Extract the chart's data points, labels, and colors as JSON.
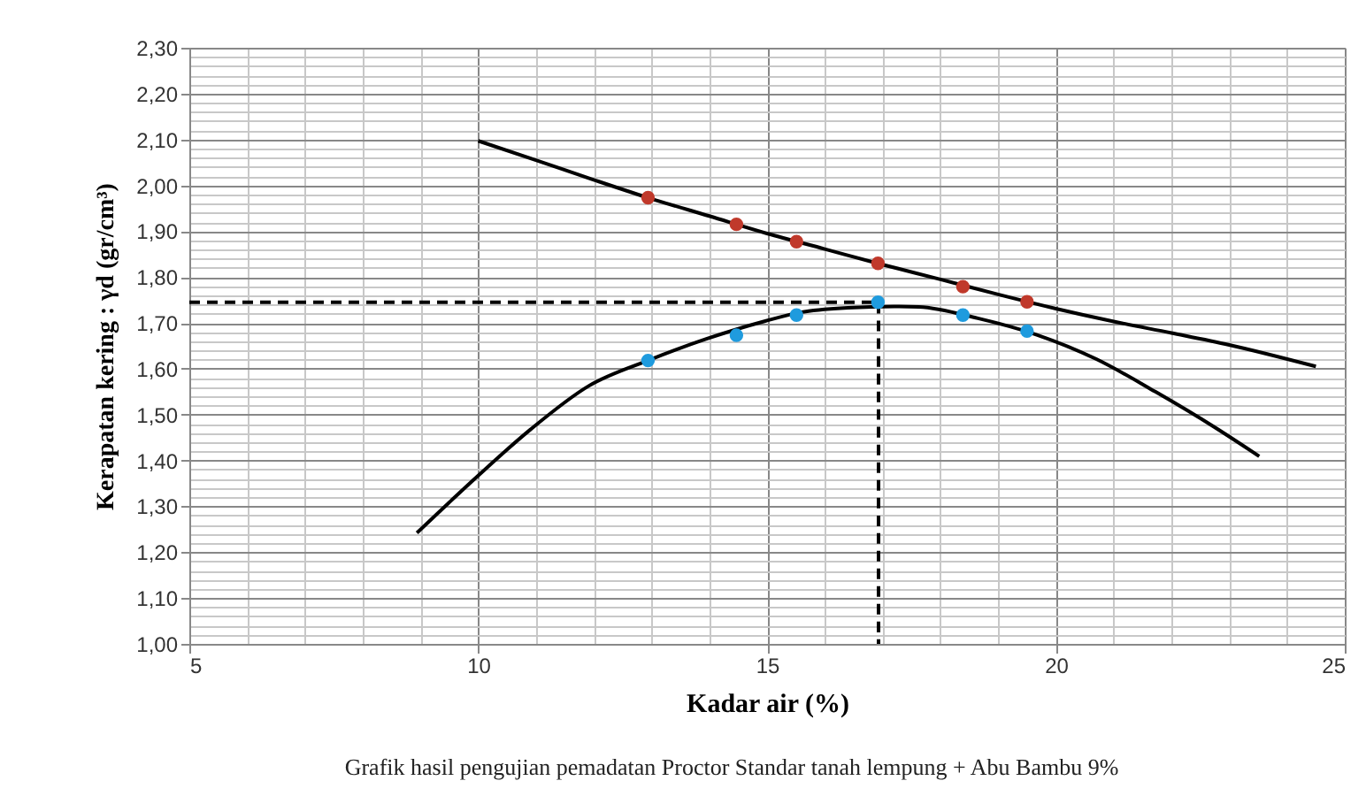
{
  "chart_data": {
    "type": "scatter",
    "xlabel": "Kadar air (%)",
    "ylabel": "Kerapatan kering : γd (gr/cm³)",
    "annotations": [
      "Grafik hasil pengujian pemadatan Proctor Standar tanah lempung + Abu Bambu 9%"
    ],
    "xlim": [
      5,
      25
    ],
    "xticks": [
      5,
      10,
      15,
      20,
      25
    ],
    "ylim": [
      1.0,
      2.3
    ],
    "yticks": [
      {
        "value": 1.0,
        "label": "1,00"
      },
      {
        "value": 1.1,
        "label": "1,10"
      },
      {
        "value": 1.2,
        "label": "1,20"
      },
      {
        "value": 1.3,
        "label": "1,30"
      },
      {
        "value": 1.4,
        "label": "1,40"
      },
      {
        "value": 1.5,
        "label": "1,50"
      },
      {
        "value": 1.6,
        "label": "1,60"
      },
      {
        "value": 1.7,
        "label": "1,70"
      },
      {
        "value": 1.8,
        "label": "1,80"
      },
      {
        "value": 1.9,
        "label": "1,90"
      },
      {
        "value": 2.0,
        "label": "2,00"
      },
      {
        "value": 2.1,
        "label": "2,10"
      },
      {
        "value": 2.2,
        "label": "2,20"
      },
      {
        "value": 2.3,
        "label": "2,30"
      }
    ],
    "grid": true,
    "series": [
      {
        "type": "line",
        "color": "#000000",
        "line_style": "solid",
        "marker": "none",
        "x": [
          10,
          11,
          12,
          12.94,
          14,
          15,
          16,
          17,
          18,
          19,
          20,
          21,
          22,
          23,
          24.5
        ],
        "values": [
          2.097,
          2.055,
          2.012,
          1.973,
          1.933,
          1.895,
          1.861,
          1.827,
          1.795,
          1.762,
          1.731,
          1.703,
          1.678,
          1.652,
          1.605
        ]
      },
      {
        "type": "line",
        "color": "#000000",
        "line_style": "solid",
        "marker": "none",
        "x": [
          8.94,
          10,
          10.9,
          11.92,
          12.94,
          13.95,
          14.97,
          15.58,
          16.4,
          17.2,
          17.63,
          18.65,
          19.67,
          20.7,
          21.72,
          22.74,
          23.52
        ],
        "values": [
          1.242,
          1.367,
          1.467,
          1.563,
          1.618,
          1.665,
          1.704,
          1.723,
          1.733,
          1.736,
          1.735,
          1.71,
          1.674,
          1.621,
          1.55,
          1.473,
          1.409
        ]
      },
      {
        "type": "line",
        "color": "#000000",
        "line_style": "dashed",
        "marker": "none",
        "x": [
          5,
          16.93,
          16.93
        ],
        "values": [
          1.745,
          1.745,
          1.0
        ]
      },
      {
        "color": "#c0392b",
        "marker": "circle",
        "x": [
          12.94,
          14.47,
          15.51,
          16.92,
          18.39,
          19.5
        ],
        "values": [
          1.973,
          1.915,
          1.877,
          1.83,
          1.779,
          1.746
        ]
      },
      {
        "color": "#1f9bde",
        "marker": "circle",
        "x": [
          12.94,
          14.47,
          15.51,
          16.92,
          18.39,
          19.5
        ],
        "values": [
          1.618,
          1.673,
          1.717,
          1.745,
          1.717,
          1.682
        ]
      }
    ]
  }
}
